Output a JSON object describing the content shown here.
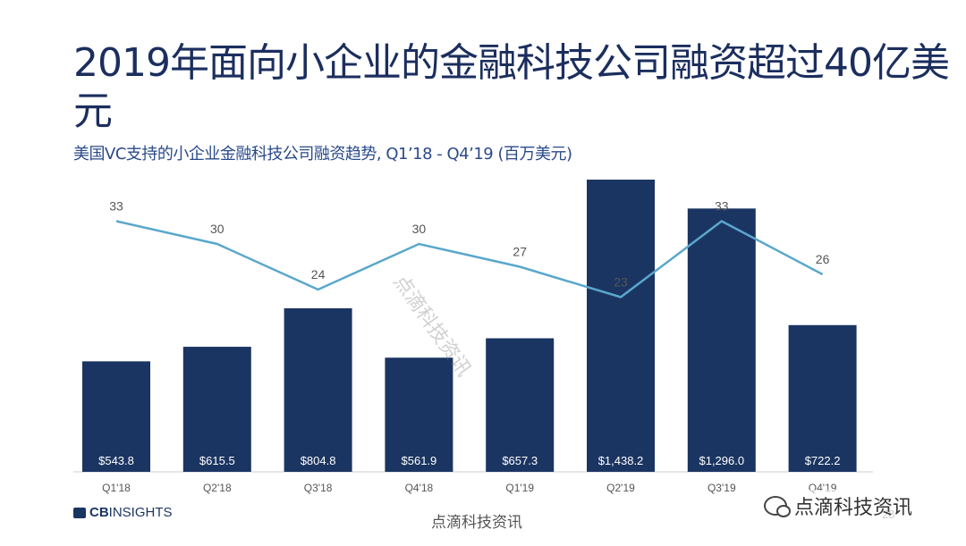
{
  "slide": {
    "title": "2019年面向小企业的金融科技公司融资超过40亿美元",
    "subtitle": "美国VC支持的小企业金融科技公司融资趋势, Q1’18 -  Q4’19 (百万美元)",
    "logo_prefix": "CB",
    "logo_suffix": "INSIGHTS",
    "page_number": "28",
    "watermark_diagonal": "点滴科技资讯",
    "footer_source": "点滴科技资讯",
    "wechat_overlay": "点滴科技资讯"
  },
  "colors": {
    "bar": "#1b3562",
    "line": "#5aa7cc",
    "title": "#1b2e5e"
  },
  "chart_data": {
    "type": "bar",
    "categories": [
      "Q1'18",
      "Q2'18",
      "Q3'18",
      "Q4'18",
      "Q1'19",
      "Q2'19",
      "Q3'19",
      "Q4'19"
    ],
    "series": [
      {
        "type": "bar",
        "values": [
          543.8,
          615.5,
          804.8,
          561.9,
          657.3,
          1438.2,
          1296.0,
          722.2
        ],
        "labels": [
          "$543.8",
          "$615.5",
          "$804.8",
          "$561.9",
          "$657.3",
          "$1,438.2",
          "$1,296.0",
          "$722.2"
        ]
      },
      {
        "type": "line",
        "values": [
          33,
          30,
          24,
          30,
          27,
          23,
          33,
          26
        ],
        "labels": [
          "33",
          "30",
          "24",
          "30",
          "27",
          "23",
          "33",
          "26"
        ]
      }
    ],
    "title": "",
    "xlabel": "",
    "ylabel": "",
    "grid": false,
    "legend": "none"
  }
}
